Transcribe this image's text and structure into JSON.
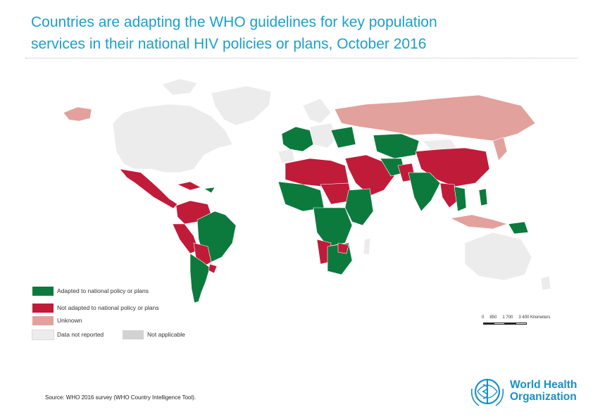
{
  "title": {
    "line1": "Countries are adapting the WHO guidelines for key population",
    "line2": "services in their national HIV policies or plans, October 2016"
  },
  "colors": {
    "title": "#1ba0c9",
    "adapted": "#0c7a3c",
    "not_adapted": "#c11b3a",
    "unknown": "#e2a19c",
    "not_reported": "#ececec",
    "not_applicable": "#d2d2d2",
    "ocean": "#ffffff",
    "who_blue": "#1a8fc4"
  },
  "legend": {
    "items": [
      {
        "label": "Adapted to national policy or plans",
        "color": "#0c7a3c"
      },
      {
        "label": "Not adapted to national policy or plans",
        "color": "#c11b3a"
      },
      {
        "label": "Unknown",
        "color": "#e2a19c"
      },
      {
        "label": "Data not reported",
        "color": "#ececec"
      },
      {
        "label": "Not applicable",
        "color": "#d2d2d2"
      }
    ]
  },
  "scale": {
    "labels": [
      "0",
      "850",
      "1 700",
      "3 400 Kilometers"
    ]
  },
  "source": "Source: WHO 2016 survey (WHO Country Intelligence Tool).",
  "logo": {
    "line1": "World Health",
    "line2": "Organization",
    "icon": "who-emblem-icon"
  }
}
